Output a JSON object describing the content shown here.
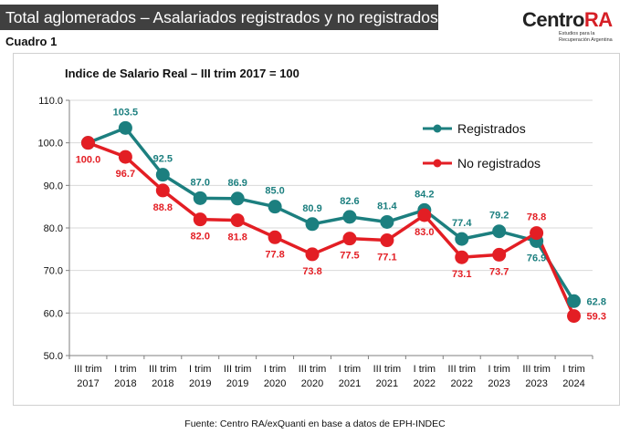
{
  "header": {
    "title": "Total aglomerados – Asalariados registrados y no registrados",
    "subtitle": "Cuadro 1"
  },
  "logo": {
    "word_main": "Centro",
    "word_accent": "RA",
    "tag_line1": "Estudios para la",
    "tag_line2": "Recuperación Argentina"
  },
  "source": "Fuente: Centro RA/exQuanti en base a datos de EPH-INDEC",
  "colors": {
    "registrados": "#1c7f7f",
    "no_registrados": "#e31e24",
    "title_bar": "#404040",
    "logo_accent": "#d61f26"
  },
  "chart_data": {
    "type": "line",
    "title": "Indice de Salario Real – III trim 2017 = 100",
    "xlabel": "",
    "ylabel": "",
    "ylim": [
      50,
      110
    ],
    "yticks": [
      "50.0",
      "60.0",
      "70.0",
      "80.0",
      "90.0",
      "100.0",
      "110.0"
    ],
    "grid": "horizontal",
    "legend_position": "top-right",
    "categories": [
      [
        "III trim",
        "2017"
      ],
      [
        "I trim",
        "2018"
      ],
      [
        "III trim",
        "2018"
      ],
      [
        "I trim",
        "2019"
      ],
      [
        "III trim",
        "2019"
      ],
      [
        "I trim",
        "2020"
      ],
      [
        "III trim",
        "2020"
      ],
      [
        "I trim",
        "2021"
      ],
      [
        "III trim",
        "2021"
      ],
      [
        "I trim",
        "2022"
      ],
      [
        "III trim",
        "2022"
      ],
      [
        "I trim",
        "2023"
      ],
      [
        "III trim",
        "2023"
      ],
      [
        "I trim",
        "2024"
      ]
    ],
    "series": [
      {
        "name": "Registrados",
        "values": [
          100.0,
          103.5,
          92.5,
          87.0,
          86.9,
          85.0,
          80.9,
          82.6,
          81.4,
          84.2,
          77.4,
          79.2,
          76.9,
          62.8
        ],
        "labels": [
          "",
          "103.5",
          "92.5",
          "87.0",
          "86.9",
          "85.0",
          "80.9",
          "82.6",
          "81.4",
          "84.2",
          "77.4",
          "79.2",
          "76.9",
          "62.8"
        ]
      },
      {
        "name": "No registrados",
        "values": [
          100.0,
          96.7,
          88.8,
          82.0,
          81.8,
          77.8,
          73.8,
          77.5,
          77.1,
          83.0,
          73.1,
          73.7,
          78.8,
          59.3
        ],
        "labels": [
          "100.0",
          "96.7",
          "88.8",
          "82.0",
          "81.8",
          "77.8",
          "73.8",
          "77.5",
          "77.1",
          "83.0",
          "73.1",
          "73.7",
          "78.8",
          "59.3"
        ]
      }
    ]
  }
}
